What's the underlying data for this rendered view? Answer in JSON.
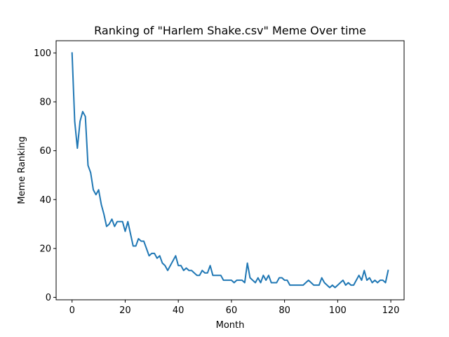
{
  "chart_data": {
    "type": "line",
    "title": "Ranking of \"Harlem Shake.csv\" Meme Over time",
    "xlabel": "Month",
    "ylabel": "Meme Ranking",
    "xlim": [
      -6,
      125
    ],
    "ylim": [
      -1,
      105
    ],
    "xticks": [
      0,
      20,
      40,
      60,
      80,
      100,
      120
    ],
    "yticks": [
      0,
      20,
      40,
      60,
      80,
      100
    ],
    "grid": false,
    "series": [
      {
        "color": "#1f77b4",
        "x": [
          0,
          1,
          2,
          3,
          4,
          5,
          6,
          7,
          8,
          9,
          10,
          11,
          12,
          13,
          14,
          15,
          16,
          17,
          18,
          19,
          20,
          21,
          22,
          23,
          24,
          25,
          26,
          27,
          28,
          29,
          30,
          31,
          32,
          33,
          34,
          35,
          36,
          37,
          38,
          39,
          40,
          41,
          42,
          43,
          44,
          45,
          46,
          47,
          48,
          49,
          50,
          51,
          52,
          53,
          54,
          55,
          56,
          57,
          58,
          59,
          60,
          61,
          62,
          63,
          64,
          65,
          66,
          67,
          68,
          69,
          70,
          71,
          72,
          73,
          74,
          75,
          76,
          77,
          78,
          79,
          80,
          81,
          82,
          83,
          84,
          85,
          86,
          87,
          88,
          89,
          90,
          91,
          92,
          93,
          94,
          95,
          96,
          97,
          98,
          99,
          100,
          101,
          102,
          103,
          104,
          105,
          106,
          107,
          108,
          109,
          110,
          111,
          112,
          113,
          114,
          115,
          116,
          117,
          118,
          119
        ],
        "y": [
          100,
          72,
          61,
          72,
          76,
          74,
          54,
          51,
          44,
          42,
          44,
          38,
          34,
          29,
          30,
          32,
          29,
          31,
          31,
          31,
          27,
          31,
          26,
          21,
          21,
          24,
          23,
          23,
          20,
          17,
          18,
          18,
          16,
          17,
          14,
          13,
          11,
          13,
          15,
          17,
          13,
          13,
          11,
          12,
          11,
          11,
          10,
          9,
          9,
          11,
          10,
          10,
          13,
          9,
          9,
          9,
          9,
          7,
          7,
          7,
          7,
          6,
          7,
          7,
          7,
          6,
          14,
          8,
          7,
          6,
          8,
          6,
          9,
          7,
          9,
          6,
          6,
          6,
          8,
          8,
          7,
          7,
          5,
          5,
          5,
          5,
          5,
          5,
          6,
          7,
          6,
          5,
          5,
          5,
          8,
          6,
          5,
          4,
          5,
          4,
          5,
          6,
          7,
          5,
          6,
          5,
          5,
          7,
          9,
          7,
          11,
          7,
          8,
          6,
          7,
          6,
          7,
          7,
          6,
          11
        ]
      }
    ]
  }
}
